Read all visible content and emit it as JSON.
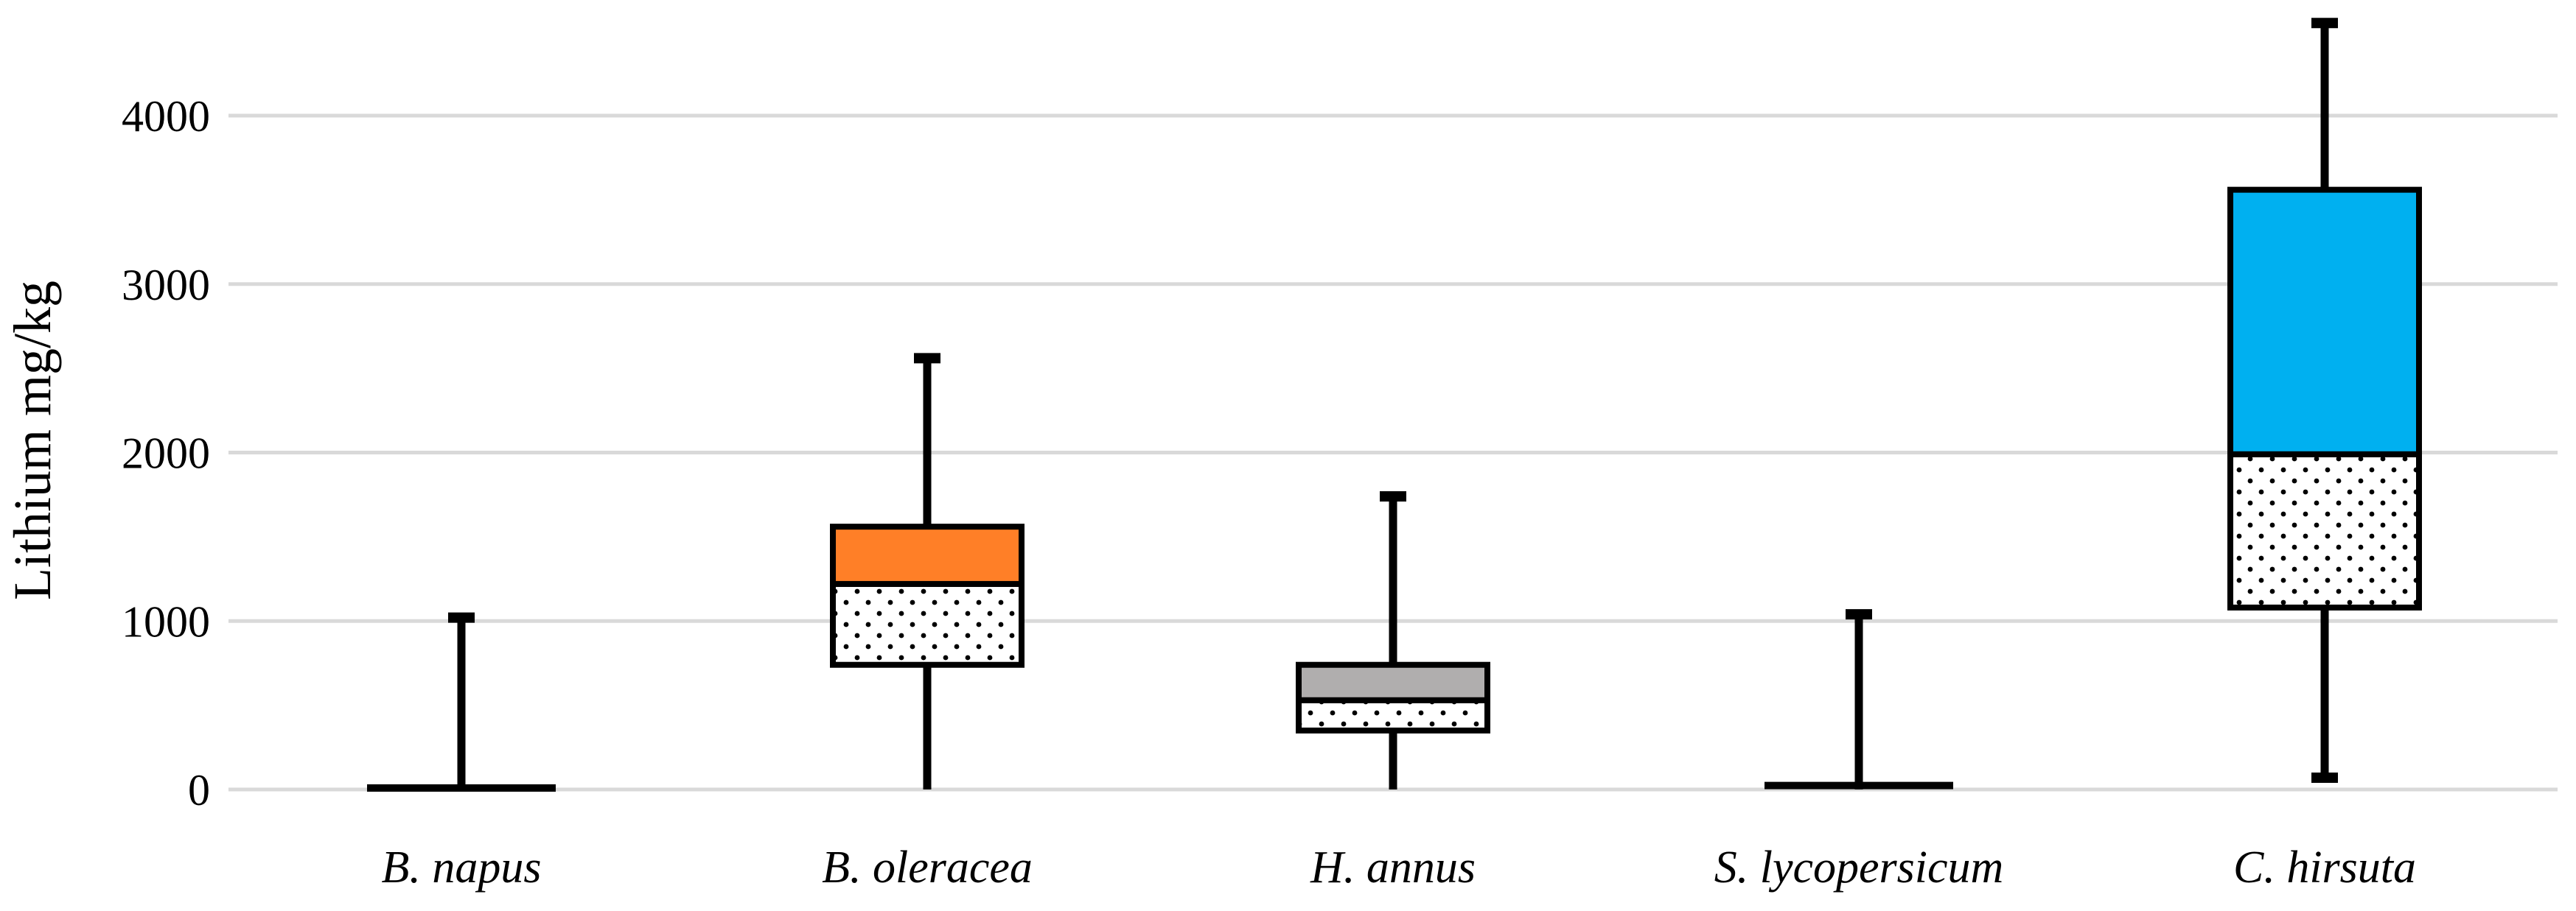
{
  "chart_data": {
    "type": "box",
    "title": "",
    "xlabel": "",
    "ylabel": "Lithium mg/kg",
    "ylim": [
      0,
      4500
    ],
    "yticks": [
      0,
      1000,
      2000,
      3000,
      4000
    ],
    "grid": true,
    "categories": [
      "B. napus",
      "B. oleracea",
      "H. annus",
      "S. lycopersicum",
      "C. hirsuta"
    ],
    "boxes": [
      {
        "name": "B. napus",
        "min": 0,
        "q1": 0,
        "median": 0,
        "q3": 0,
        "max": 1020,
        "color": "#ffffff"
      },
      {
        "name": "B. oleracea",
        "min": 0,
        "q1": 740,
        "median": 1220,
        "q3": 1560,
        "max": 2560,
        "color": "#ff7f27"
      },
      {
        "name": "H. annus",
        "min": 0,
        "q1": 350,
        "median": 530,
        "q3": 740,
        "max": 1740,
        "color": "#b0aeae"
      },
      {
        "name": "S. lycopersicum",
        "min": 0,
        "q1": 15,
        "median": 15,
        "q3": 20,
        "max": 1040,
        "color": "#ffffff"
      },
      {
        "name": "C. hirsuta",
        "min": 70,
        "q1": 1080,
        "median": 1990,
        "q3": 3560,
        "max": 4550,
        "color": "#00b0f0"
      }
    ]
  }
}
